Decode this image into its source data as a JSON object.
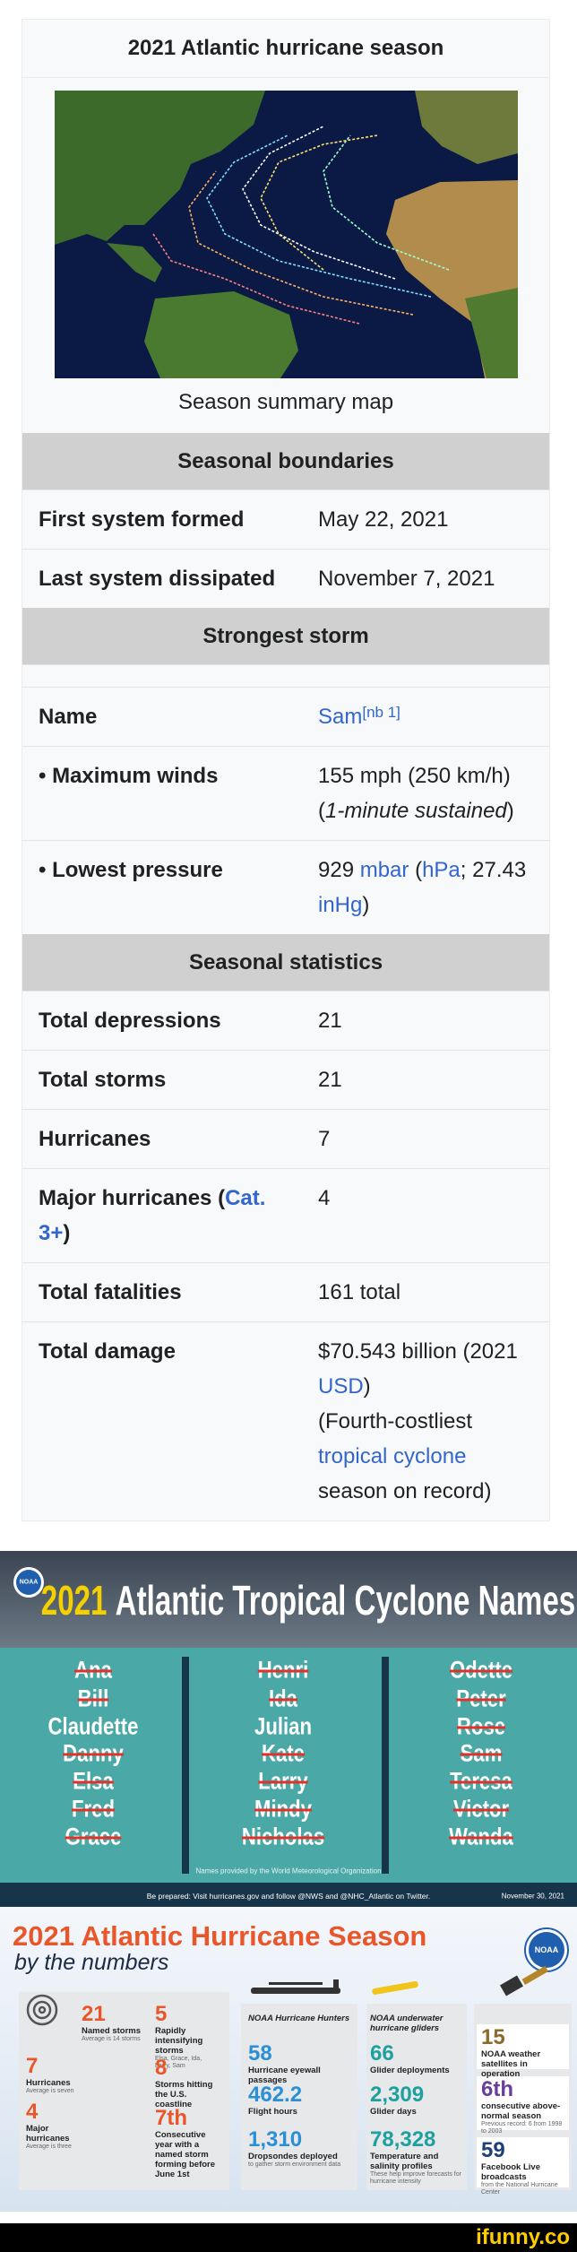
{
  "infobox": {
    "title": "2021 Atlantic hurricane season",
    "map_caption": "Season summary map",
    "sections": [
      {
        "header": "Seasonal boundaries",
        "rows": [
          {
            "label": [
              {
                "text": "First system formed"
              }
            ],
            "value": [
              {
                "text": "May 22, 2021"
              }
            ]
          },
          {
            "label": [
              {
                "text": "Last system dissipated"
              }
            ],
            "value": [
              {
                "text": "November 7, 2021"
              }
            ]
          }
        ]
      },
      {
        "header": "Strongest storm",
        "rows": [
          {
            "label": [
              {
                "text": "Name"
              }
            ],
            "value": [
              {
                "text": "Sam",
                "link": true
              },
              {
                "text": "[nb 1]",
                "link": true,
                "sup": true
              }
            ]
          },
          {
            "label": [
              {
                "text": "• Maximum winds"
              }
            ],
            "value": [
              {
                "text": "155 mph (250 km/h)"
              },
              {
                "text": "(",
                "break": true
              },
              {
                "text": "1-minute sustained",
                "italic": true
              },
              {
                "text": ")"
              }
            ]
          },
          {
            "label": [
              {
                "text": "• Lowest pressure"
              }
            ],
            "value": [
              {
                "text": "929 "
              },
              {
                "text": "mbar",
                "link": true
              },
              {
                "text": " ("
              },
              {
                "text": "hPa",
                "link": true
              },
              {
                "text": "; 27.43 "
              },
              {
                "text": "inHg",
                "link": true
              },
              {
                "text": ")"
              }
            ]
          }
        ]
      },
      {
        "header": "Seasonal statistics",
        "rows": [
          {
            "label": [
              {
                "text": "Total depressions"
              }
            ],
            "value": [
              {
                "text": "21"
              }
            ]
          },
          {
            "label": [
              {
                "text": "Total storms"
              }
            ],
            "value": [
              {
                "text": "21"
              }
            ]
          },
          {
            "label": [
              {
                "text": "Hurricanes"
              }
            ],
            "value": [
              {
                "text": "7"
              }
            ]
          },
          {
            "label": [
              {
                "text": "Major hurricanes ("
              },
              {
                "text": "Cat. 3+",
                "link": true
              },
              {
                "text": ")"
              }
            ],
            "value": [
              {
                "text": "4"
              }
            ]
          },
          {
            "label": [
              {
                "text": "Total fatalities"
              }
            ],
            "value": [
              {
                "text": "161 total"
              }
            ]
          },
          {
            "label": [
              {
                "text": "Total damage"
              }
            ],
            "value": [
              {
                "text": "$70.543 billion (2021 "
              },
              {
                "text": "USD",
                "link": true
              },
              {
                "text": ")"
              },
              {
                "text": "(Fourth-costliest ",
                "break": true
              },
              {
                "text": "tropical cyclone",
                "link": true
              },
              {
                "text": " season on record)"
              }
            ]
          }
        ]
      }
    ]
  },
  "names_graphic": {
    "logo": "NOAA",
    "title_year": "2021",
    "title": "Atlantic Tropical Cyclone Names",
    "columns": [
      [
        {
          "name": "Ana",
          "struck": true
        },
        {
          "name": "Bill",
          "struck": true
        },
        {
          "name": "Claudette",
          "struck": false
        },
        {
          "name": "Danny",
          "struck": true
        },
        {
          "name": "Elsa",
          "struck": true
        },
        {
          "name": "Fred",
          "struck": true
        },
        {
          "name": "Grace",
          "struck": true
        }
      ],
      [
        {
          "name": "Henri",
          "struck": true
        },
        {
          "name": "Ida",
          "struck": true
        },
        {
          "name": "Julian",
          "struck": false
        },
        {
          "name": "Kate",
          "struck": true
        },
        {
          "name": "Larry",
          "struck": true
        },
        {
          "name": "Mindy",
          "struck": true
        },
        {
          "name": "Nicholas",
          "struck": true
        }
      ],
      [
        {
          "name": "Odette",
          "struck": true
        },
        {
          "name": "Peter",
          "struck": true
        },
        {
          "name": "Rose",
          "struck": true
        },
        {
          "name": "Sam",
          "struck": true
        },
        {
          "name": "Teresa",
          "struck": true
        },
        {
          "name": "Victor",
          "struck": true
        },
        {
          "name": "Wanda",
          "struck": true
        }
      ]
    ],
    "credit": "Names provided by the World Meteorological Organization",
    "footer": "Be prepared: Visit hurricanes.gov and follow @NWS and @NHC_Atlantic on Twitter.",
    "date": "November 30, 2021"
  },
  "numbers_graphic": {
    "title": "2021 Atlantic Hurricane Season",
    "subtitle": "by the numbers",
    "logo": "NOAA",
    "panels": [
      {
        "stats": [
          {
            "value": "21",
            "label": "Named storms",
            "note": "Average is 14 storms",
            "color": "#e8562a"
          },
          {
            "value": "5",
            "label": "Rapidly intensifying storms",
            "note": "Elsa, Grace, Ida, Larry, Sam",
            "color": "#e8562a"
          },
          {
            "value": "7",
            "label": "Hurricanes",
            "note": "Average is seven",
            "color": "#e8562a"
          },
          {
            "value": "8",
            "label": "Storms hitting the U.S. coastline",
            "color": "#e8562a"
          },
          {
            "value": "4",
            "label": "Major hurricanes",
            "note": "Average is three",
            "color": "#e8562a"
          },
          {
            "value": "7th",
            "label": "Consecutive year with a named storm forming before June 1st",
            "color": "#e8562a"
          }
        ]
      },
      {
        "heading": "NOAA Hurricane Hunters",
        "stats": [
          {
            "value": "58",
            "label": "Hurricane eyewall passages",
            "color": "#2b8fd6"
          },
          {
            "value": "462.2",
            "label": "Flight hours",
            "color": "#2b8fd6"
          },
          {
            "value": "1,310",
            "label": "Dropsondes deployed",
            "note": "to gather storm environment data",
            "color": "#2b8fd6"
          }
        ]
      },
      {
        "heading": "NOAA underwater hurricane gliders",
        "stats": [
          {
            "value": "66",
            "label": "Glider deployments",
            "color": "#1fa0a0"
          },
          {
            "value": "2,309",
            "label": "Glider days",
            "color": "#1fa0a0"
          },
          {
            "value": "78,328",
            "label": "Temperature and salinity profiles",
            "note": "These help improve forecasts for hurricane intensity",
            "color": "#1fa0a0"
          }
        ]
      },
      {
        "stats": [
          {
            "value": "15",
            "label": "NOAA weather satellites in operation",
            "color": "#8b6a2a"
          },
          {
            "value": "6th",
            "label": "consecutive above-normal season",
            "note": "Previous record: 6 from 1998 to 2003",
            "color": "#6a3d9a"
          },
          {
            "value": "59",
            "label": "Facebook Live broadcasts",
            "note": "from the National Hurricane Center",
            "color": "#1d3f7a"
          }
        ]
      }
    ]
  },
  "watermark": "ifunny.co"
}
